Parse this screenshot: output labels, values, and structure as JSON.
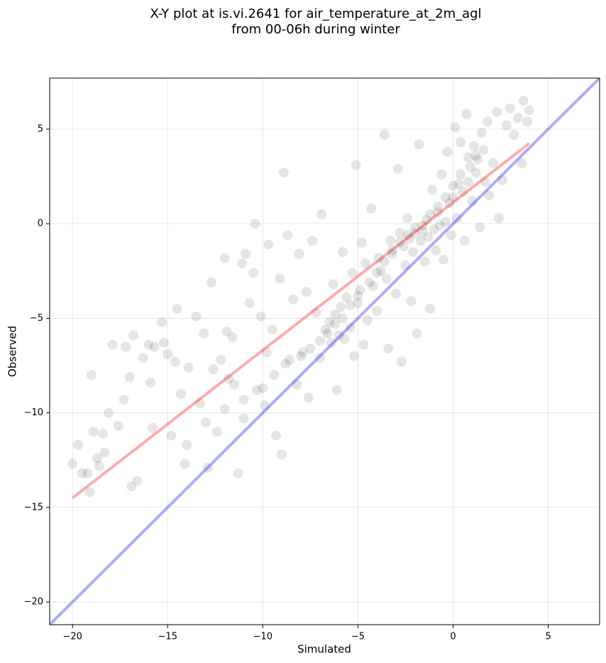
{
  "chart_data": {
    "type": "scatter",
    "title": [
      "X-Y plot at is.vi.2641 for air_temperature_at_2m_agl",
      "from 00-06h during winter"
    ],
    "xlabel": "Simulated",
    "ylabel": "Observed",
    "xlim": [
      -21.2,
      7.7
    ],
    "ylim": [
      -21.2,
      7.7
    ],
    "xticks": [
      {
        "value": -20,
        "label": "−20"
      },
      {
        "value": -15,
        "label": "−15"
      },
      {
        "value": -10,
        "label": "−10"
      },
      {
        "value": -5,
        "label": "−5"
      },
      0,
      5
    ],
    "yticks": [
      {
        "value": -20,
        "label": "−20"
      },
      {
        "value": -15,
        "label": "−15"
      },
      {
        "value": -10,
        "label": "−10"
      },
      {
        "value": -5,
        "label": "−5"
      },
      0,
      5
    ],
    "grid": true,
    "color": "#000000",
    "alpha": 0.1,
    "x": [
      -20,
      -19.7,
      -19.5,
      -19.2,
      -19.1,
      -19,
      -18.9,
      -18.7,
      -18.6,
      -18.4,
      -18.3,
      -18.1,
      -17.9,
      -17.6,
      -17.3,
      -17.2,
      -17,
      -16.9,
      -16.6,
      -16.8,
      -16.3,
      -16,
      -15.9,
      -15.8,
      -15.7,
      -15.3,
      -15.2,
      -15,
      -14.8,
      -14.6,
      -14.5,
      -14.3,
      -14.1,
      -13.9,
      -13.5,
      -13.3,
      -13.1,
      -12.9,
      -12.7,
      -12.6,
      -12.4,
      -12.2,
      -12,
      -11.9,
      -11.6,
      -11.5,
      -11.3,
      -11.1,
      -11,
      -10.9,
      -10.7,
      -10.5,
      -10.4,
      -10.3,
      -10.1,
      -9.9,
      -9.7,
      -9.5,
      -9.3,
      -9.1,
      -9,
      -8.9,
      -8.7,
      -8.6,
      -8.4,
      -8.2,
      -8.1,
      -7.9,
      -7.7,
      -7.6,
      -7.4,
      -7.2,
      -7,
      -6.9,
      -6.7,
      -6.5,
      -6.4,
      -6.3,
      -6.2,
      -6.1,
      -6,
      -5.9,
      -5.8,
      -5.7,
      -5.6,
      -5.4,
      -5.3,
      -5.2,
      -5.1,
      -5,
      -4.9,
      -4.8,
      -4.7,
      -4.6,
      -4.5,
      -4.3,
      -4.2,
      -4,
      -3.9,
      -3.8,
      -3.6,
      -3.5,
      -3.4,
      -3.3,
      -3.2,
      -3,
      -2.9,
      -2.8,
      -2.7,
      -2.6,
      -2.5,
      -2.4,
      -2.3,
      -2.2,
      -2.1,
      -2,
      -1.9,
      -1.8,
      -1.7,
      -1.6,
      -1.5,
      -1.4,
      -1.3,
      -1.2,
      -1.1,
      -1,
      -0.9,
      -0.8,
      -0.7,
      -0.6,
      -0.5,
      -0.4,
      -0.3,
      -0.2,
      -0.1,
      0,
      0.1,
      0.2,
      0.3,
      0.4,
      0.5,
      0.6,
      0.7,
      0.8,
      0.9,
      1,
      1.1,
      1.2,
      1.3,
      1.4,
      1.5,
      1.6,
      1.7,
      1.8,
      1.9,
      2.1,
      2.3,
      2.4,
      2.6,
      2.8,
      3,
      3.2,
      3.4,
      3.6,
      3.7,
      3.9,
      4,
      -10,
      -9.4,
      -8.8,
      -8,
      -7.5,
      -7,
      -6.6,
      -6.2,
      -5.8,
      -5.4,
      -5,
      -4.4,
      -4,
      -3.6,
      -3.2,
      -2.8,
      -2.4,
      -2,
      -1.6,
      -1.2,
      -0.8,
      -0.4,
      0,
      0.4,
      0.8,
      1.2,
      -11,
      -12,
      -13,
      -14,
      -11.8,
      -9.8
    ],
    "values": [
      -12.7,
      -11.7,
      -13.2,
      -13.2,
      -14.2,
      -8,
      -11,
      -12.4,
      -12.8,
      -11.1,
      -12.1,
      -10,
      -6.4,
      -10.7,
      -9.3,
      -6.5,
      -8.1,
      -13.9,
      -13.6,
      -5.9,
      -7.1,
      -6.4,
      -8.4,
      -10.8,
      -6.5,
      -5.2,
      -6.3,
      -6.9,
      -11.2,
      -7.3,
      -4.5,
      -9,
      -12.7,
      -7.6,
      -4.9,
      -9.5,
      -5.8,
      -12.9,
      -3.1,
      -7.7,
      -11,
      -7.2,
      -1.8,
      -5.7,
      -6,
      -8.5,
      -13.2,
      -2.1,
      -10.3,
      -1.6,
      -4.2,
      -2.6,
      0,
      -8.8,
      -4.9,
      -9.6,
      -1.1,
      -5.6,
      -11.2,
      -2.9,
      -12.2,
      2.7,
      -0.6,
      -7.2,
      -4,
      -8.5,
      -1.6,
      -6.8,
      -3.6,
      -9.2,
      -0.9,
      -4.7,
      -7.1,
      0.5,
      -5.6,
      -5.2,
      -6.3,
      -3.2,
      -4.8,
      -8.8,
      -5.9,
      -4.4,
      -1.5,
      -6.1,
      -3.9,
      -5.5,
      -2.6,
      -7,
      3.1,
      -4.2,
      -3.5,
      -1,
      -6.4,
      -2.1,
      -5.1,
      0.8,
      -3.3,
      -4.6,
      -1.8,
      -2.5,
      4.7,
      -2.9,
      -6.6,
      -0.9,
      -1.6,
      -3.7,
      2.9,
      -0.5,
      -7.3,
      -1.2,
      -2.2,
      0.3,
      -0.8,
      -4.1,
      -1.5,
      -0.2,
      -5.8,
      4.2,
      -0.9,
      -0.4,
      -2,
      0.2,
      -0.7,
      -4.5,
      1.8,
      -0.3,
      -1.4,
      0.6,
      -0.1,
      2.6,
      -1.9,
      0.1,
      3.8,
      1.1,
      -0.6,
      1.4,
      5.1,
      0.3,
      2.1,
      4.3,
      1.7,
      -0.9,
      5.8,
      3.5,
      3,
      1.2,
      4.1,
      2.7,
      3.4,
      -0.2,
      4.8,
      3.9,
      2.2,
      5.4,
      1.5,
      3.2,
      5.9,
      0.3,
      2.3,
      5.2,
      6.1,
      4.7,
      5.6,
      3.2,
      6.5,
      5.4,
      6,
      -8.7,
      -8,
      -7.4,
      -7,
      -6.6,
      -6.2,
      -5.8,
      -5.3,
      -5,
      -4.3,
      -3.8,
      -3.1,
      -2.6,
      -2,
      -1.4,
      -1,
      -0.6,
      -0.5,
      -0.1,
      0.5,
      0.9,
      1.4,
      2,
      2.6,
      2.2,
      3.6,
      -9.3,
      -9.8,
      -10.5,
      -11.7,
      -8.2,
      -6.8
    ],
    "lines": [
      {
        "color": "#0000ff",
        "x": [
          -21.2,
          7.7
        ],
        "values": [
          -21.2,
          7.7
        ]
      },
      {
        "color": "#ff0000",
        "x": [
          -20,
          4
        ],
        "values": [
          -14.5,
          4.25
        ]
      }
    ],
    "line_alpha": 0.33
  }
}
